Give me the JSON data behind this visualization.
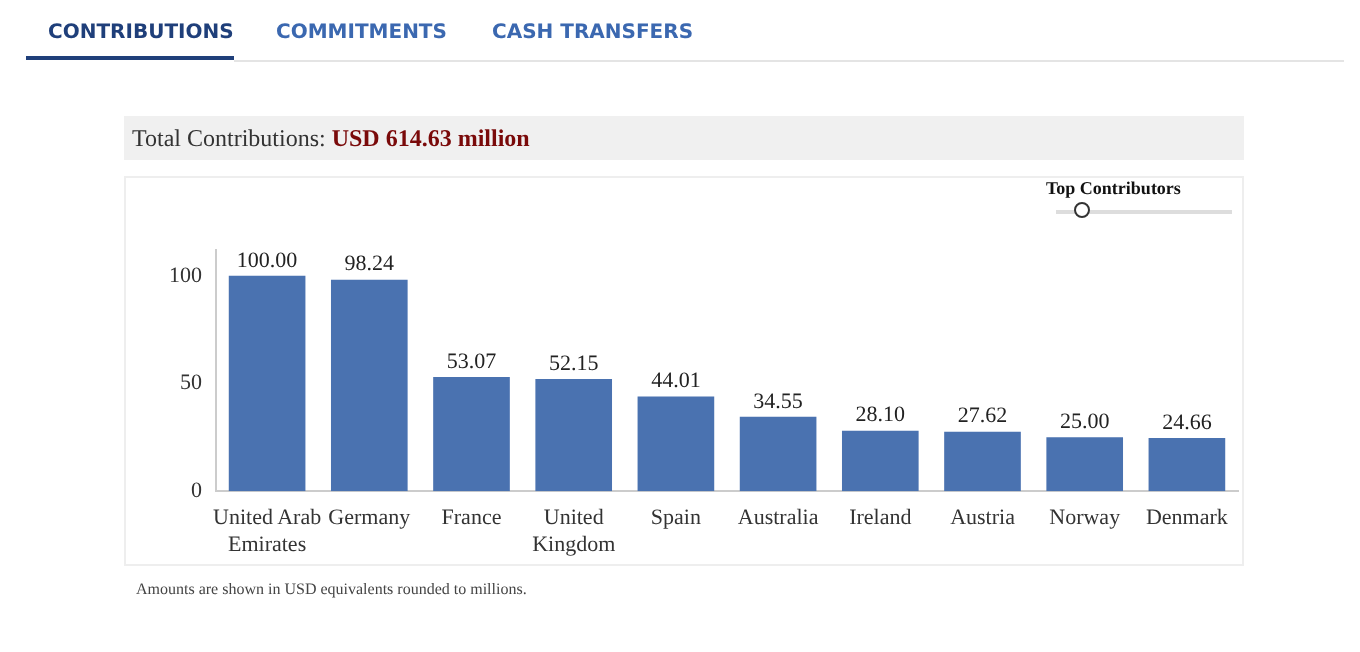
{
  "chart_data": {
    "type": "bar",
    "title": "Total Contributions: USD 614.63 million",
    "annotations": [
      "CONTRIBUTIONS",
      "COMMITMENTS",
      "CASH TRANSFERS",
      "Top Contributors",
      "Amounts are shown in USD equivalents rounded to millions."
    ],
    "categories": [
      "United Arab Emirates",
      "Germany",
      "France",
      "United Kingdom",
      "Spain",
      "Australia",
      "Ireland",
      "Austria",
      "Norway",
      "Denmark"
    ],
    "values": [
      100.0,
      98.24,
      53.07,
      52.15,
      44.01,
      34.55,
      28.1,
      27.62,
      25.0,
      24.66
    ],
    "value_labels": [
      "100.00",
      "98.24",
      "53.07",
      "52.15",
      "44.01",
      "34.55",
      "28.10",
      "27.62",
      "25.00",
      "24.66"
    ],
    "color": "#4a72b0",
    "ylim": [
      0,
      112
    ],
    "yticks": [
      0,
      50,
      100
    ],
    "grid": false
  }
}
